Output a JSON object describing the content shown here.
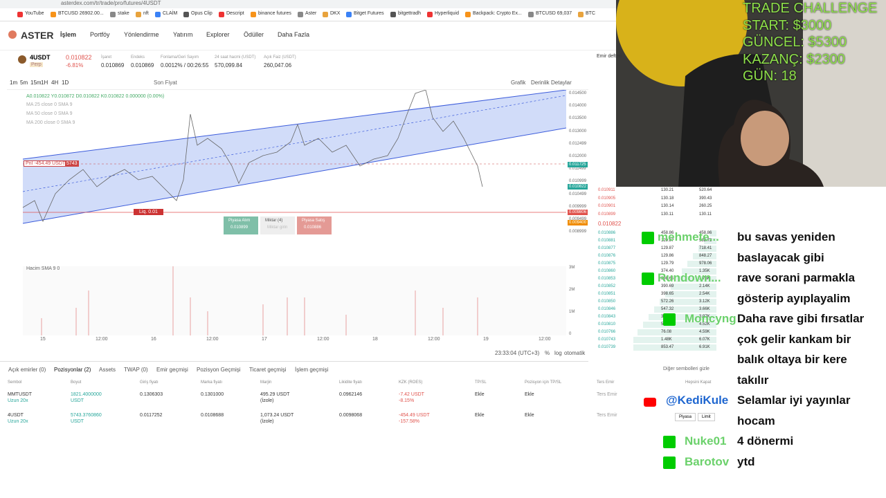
{
  "browser": {
    "url": "asterdex.com/tr/trade/pro/futures/4USDT",
    "bookmarks": [
      "YouTube",
      "BTCUSD 26902.00...",
      "stake",
      "nft",
      "CLAİM",
      "Opus Clip",
      "Descript",
      "binance futures",
      "Aster",
      "DKX",
      "Bitget Futures",
      "bitgettradh",
      "Hyperliquid",
      "Backpack: Crypto Ex...",
      "BTCUSD 69,037",
      "BTC"
    ]
  },
  "nav": {
    "logo": "ASTER",
    "items": [
      "İşlem",
      "Portföy",
      "Yönlendirme",
      "Yatırım",
      "Explorer",
      "Ödüller",
      "Daha Fazla"
    ]
  },
  "ticker": {
    "symbol": "4USDT",
    "tag": "Perp",
    "price": "0.010822",
    "change": "-6.81%",
    "stats": [
      {
        "label": "İşaret",
        "value": "0.010869"
      },
      {
        "label": "Endeks",
        "value": "0.010869"
      },
      {
        "label": "Fonlama/Geri Sayım",
        "value": "0.0012% / 00:26:55"
      },
      {
        "label": "24 saat hacmi (USDT)",
        "value": "570,099.84"
      },
      {
        "label": "Açık Faiz (USDT)",
        "value": "260,047.06"
      }
    ]
  },
  "toolbar": {
    "intervals": [
      "1m",
      "5m",
      "15m",
      "1H",
      "4H",
      "1D"
    ],
    "price_type": "Son Fiyat",
    "views": [
      "Grafik",
      "Derinlik",
      "Detaylar"
    ]
  },
  "chart": {
    "ohlc": "A0.010822 Y0.010872 D0.010822 K0.010822 0.000000 (0.00%)",
    "indicators": [
      "MA 25 close 0 SMA 9",
      "MA 50 close 0 SMA 9",
      "MA 200 close 0 SMA 9"
    ],
    "price_axis": [
      "0.014500",
      "0.014000",
      "0.013500",
      "0.013000",
      "0.012499",
      "0.012000",
      "0.011499",
      "0.010999",
      "0.010499",
      "0.009999",
      "0.009499",
      "0.008999"
    ],
    "price_tags": [
      {
        "label": "0.011725",
        "kind": "green"
      },
      {
        "label": "0.010822",
        "kind": "green"
      },
      {
        "label": "0.009806",
        "kind": "red"
      },
      {
        "label": "0.009400",
        "kind": "orange"
      }
    ],
    "x_axis": [
      "15",
      "12:00",
      "16",
      "12:00",
      "17",
      "12:00",
      "18",
      "12:00",
      "19",
      "12:00"
    ],
    "pnl": "PnI -454.49 USDT",
    "size": "5743",
    "liq": "Liq. 0.01",
    "volume_label": "Hacim SMA 9  0",
    "volume_axis": [
      "3M",
      "2M",
      "1M",
      "0"
    ],
    "time": "23:33:04 (UTC+3)",
    "scale": [
      "%",
      "log",
      "otomatik"
    ]
  },
  "order_buttons": [
    {
      "label": "Piyasa Alım",
      "price": "0.010899"
    },
    {
      "label": "Miktar (4)",
      "price": "Miktar girin"
    },
    {
      "label": "Piyasa Satış",
      "price": "0.010886"
    }
  ],
  "orderbook": {
    "title": "Emir defteri",
    "rows": [
      [
        "0.010911",
        "130.21",
        "520.64"
      ],
      [
        "0.010905",
        "130.18",
        "390.43"
      ],
      [
        "0.010901",
        "130.14",
        "260.25"
      ],
      [
        "0.010899",
        "130.11",
        "130.11"
      ]
    ],
    "mid": "0.010822",
    "bids": [
      [
        "0.010886",
        "458.86",
        "458.86"
      ],
      [
        "0.010881",
        "129.87",
        "588.73"
      ],
      [
        "0.010877",
        "129.87",
        "718.41"
      ],
      [
        "0.010876",
        "129.86",
        "848.27"
      ],
      [
        "0.010875",
        "129.79",
        "978.06"
      ],
      [
        "0.010860",
        "374.40",
        "1.35K"
      ],
      [
        "0.010853",
        "398.65",
        "1.75K"
      ],
      [
        "0.010852",
        "390.69",
        "2.14K"
      ],
      [
        "0.010851",
        "398.65",
        "2.54K"
      ],
      [
        "0.010850",
        "572.26",
        "3.12K"
      ],
      [
        "0.010846",
        "547.32",
        "3.66K"
      ],
      [
        "0.010843",
        "311.84",
        "3.97K"
      ],
      [
        "0.010810",
        "55.59",
        "4.52K"
      ],
      [
        "0.010766",
        "76.08",
        "4.59K"
      ],
      [
        "0.010743",
        "1.48K",
        "6.07K"
      ],
      [
        "0.010739",
        "853.47",
        "6.91K"
      ]
    ]
  },
  "positions": {
    "tabs": [
      "Açık emirler (0)",
      "Pozisyonlar (2)",
      "Assets",
      "TWAP (0)",
      "Emir geçmişi",
      "Pozisyon Geçmişi",
      "Ticaret geçmişi",
      "İşlem geçmişi"
    ],
    "hide_others": "Diğer sembolleri gizle",
    "headers": [
      "Sembol",
      "Boyut",
      "Giriş fiyatı",
      "Marka fiyatı",
      "Marjin",
      "Likidite fiyatı",
      "KZK (ROES)",
      "TP/SL",
      "Pozisyon için TP/SL",
      "Ters Emir",
      "Hepsini Kapat"
    ],
    "rows": [
      [
        [
          "MMTUSDT",
          "Uzun 20x"
        ],
        [
          "1821.4000000",
          "USDT"
        ],
        [
          "0.1306303"
        ],
        [
          "0.1301000"
        ],
        [
          "495.29 USDT",
          "(İzole)"
        ],
        [
          "0.0962146"
        ],
        [
          "-7.42 USDT",
          "-8.15%"
        ],
        [
          "Ekle"
        ],
        [
          "Ekle"
        ],
        [
          "Ters Emir"
        ]
      ],
      [
        [
          "4USDT",
          "Uzun 20x"
        ],
        [
          "5743.3760860",
          "USDT"
        ],
        [
          "0.0117252"
        ],
        [
          "0.0108688"
        ],
        [
          "1,073.24 USDT",
          "(İzole)"
        ],
        [
          "0.0098068"
        ],
        [
          "-454.49 USDT",
          "-157.58%"
        ],
        [
          "Ekle"
        ],
        [
          "Ekle"
        ],
        [
          "Ters Emir"
        ]
      ]
    ],
    "close_buttons": [
      "Piyasa",
      "Limit"
    ]
  },
  "chat": [
    {
      "platform": "kick",
      "user": "mehmete...",
      "lines": [
        "bu savas yeniden",
        "baslayacak gibi"
      ]
    },
    {
      "platform": "kick",
      "user": "Rundown...",
      "lines": [
        "rave sorani parmakla",
        "gösterip ayıplayalim"
      ]
    },
    {
      "platform": "kick",
      "user": "Moncyng",
      "lines": [
        "Daha rave gibi fırsatlar",
        "çok gelir kankam bir",
        "balık oltaya bir kere",
        "takılır"
      ]
    },
    {
      "platform": "youtube",
      "user": "@KediKule",
      "lines": [
        "Selamlar iyi yayınlar",
        "hocam"
      ]
    },
    {
      "platform": "kick",
      "user": "Nuke01",
      "lines": [
        "4 dönermi"
      ]
    },
    {
      "platform": "kick",
      "user": "Barotov",
      "lines": [
        "ytd"
      ]
    }
  ],
  "overlay": [
    "TRADE CHALLENGE",
    "START: $3000",
    "GÜNCEL: $5300",
    "KAZANÇ: $2300",
    "GÜN: 18"
  ]
}
